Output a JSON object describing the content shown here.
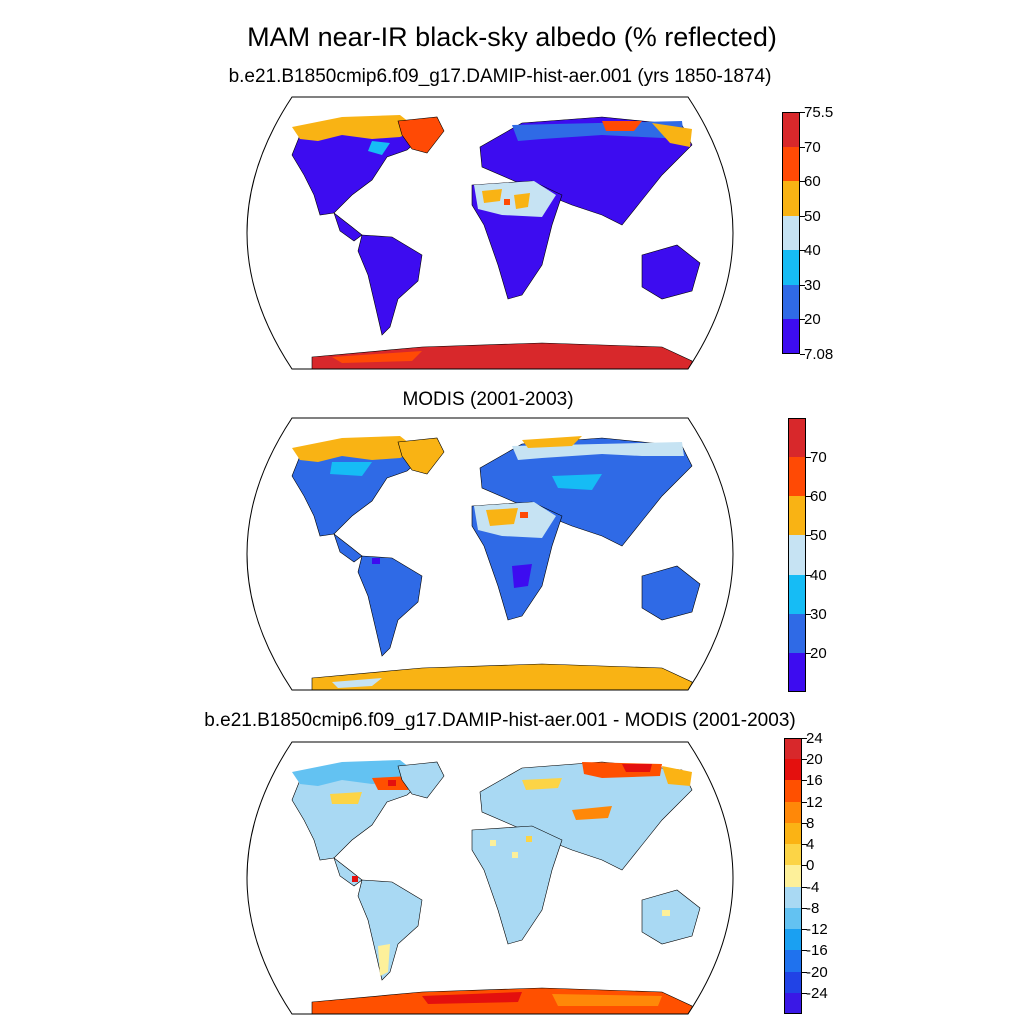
{
  "title": "MAM near-IR black-sky albedo (% reflected)",
  "panels": [
    {
      "id": "model",
      "subtitle": "b.e21.B1850cmip6.f09_g17.DAMIP-hist-aer.001 (yrs 1850-1874)",
      "colorbar": {
        "colors": [
          "#3d0cf0",
          "#2f6ae6",
          "#16bcf5",
          "#c6e3f3",
          "#f9b314",
          "#ff4a05",
          "#d8282b"
        ],
        "labels": [
          "7.08",
          "20",
          "30",
          "40",
          "50",
          "60",
          "70",
          "75.5"
        ]
      }
    },
    {
      "id": "obs",
      "subtitle": "MODIS (2001-2003)",
      "colorbar": {
        "colors": [
          "#3d0cf0",
          "#2f6ae6",
          "#16bcf5",
          "#c6e3f3",
          "#f9b314",
          "#ff4a05",
          "#d8282b"
        ],
        "labels": [
          "20",
          "30",
          "40",
          "50",
          "60",
          "70"
        ]
      }
    },
    {
      "id": "diff",
      "subtitle": "b.e21.B1850cmip6.f09_g17.DAMIP-hist-aer.001 - MODIS (2001-2003)",
      "colorbar": {
        "colors": [
          "#3a18e6",
          "#2143e6",
          "#1f72ee",
          "#1aa0f2",
          "#63c2f2",
          "#a9d9f3",
          "#fdf09a",
          "#fcd446",
          "#fbb314",
          "#ff8808",
          "#ff5000",
          "#e4100e",
          "#d8282b"
        ],
        "labels": [
          "-24",
          "-20",
          "-16",
          "-12",
          "-8",
          "-4",
          "0",
          "4",
          "8",
          "12",
          "16",
          "20",
          "24"
        ]
      }
    }
  ]
}
